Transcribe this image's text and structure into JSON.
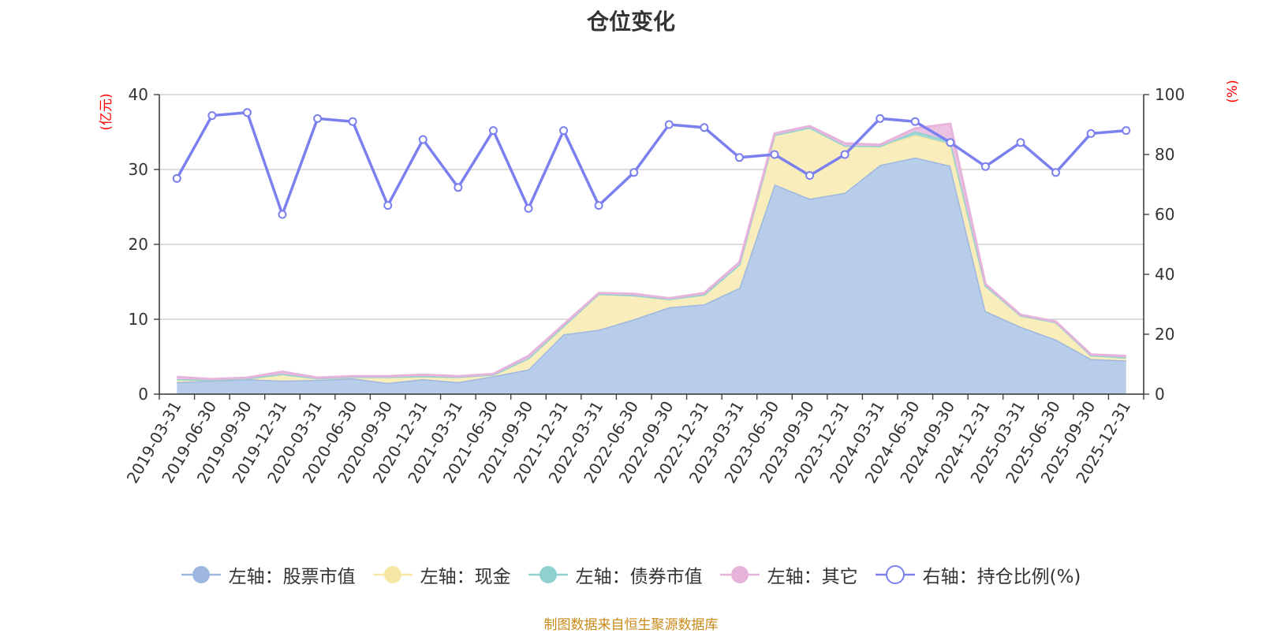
{
  "chart_data": {
    "type": "area",
    "title": "仓位变化",
    "left_axis_label": "(亿元)",
    "right_axis_label": "(%)",
    "left_ylim": [
      0,
      40
    ],
    "left_ticks": [
      "0",
      "10",
      "20",
      "30",
      "40"
    ],
    "right_ylim": [
      0,
      100
    ],
    "right_ticks": [
      "0",
      "20",
      "40",
      "60",
      "80",
      "100"
    ],
    "categories": [
      "2019-03-31",
      "2019-06-30",
      "2019-09-30",
      "2019-12-31",
      "2020-03-31",
      "2020-06-30",
      "2020-09-30",
      "2020-12-31",
      "2021-03-31",
      "2021-06-30",
      "2021-09-30",
      "2021-12-31",
      "2022-03-31",
      "2022-06-30",
      "2022-09-30",
      "2022-12-31",
      "2023-03-31",
      "2023-06-30",
      "2023-09-30",
      "2023-12-31",
      "2024-03-31",
      "2024-06-30",
      "2024-09-30",
      "2024-12-31",
      "2025-03-31",
      "2025-06-30",
      "2025-09-30",
      "2025-12-31"
    ],
    "series": [
      {
        "name": "左轴：股票市值",
        "axis": "left",
        "color": "#9db7e0",
        "fill": "#b8cdea",
        "values": [
          1.6,
          1.8,
          2.0,
          1.8,
          1.9,
          2.1,
          1.5,
          2.0,
          1.6,
          2.4,
          3.3,
          8.0,
          8.6,
          10.0,
          11.6,
          12.0,
          14.2,
          28.0,
          26.1,
          26.9,
          30.6,
          31.6,
          30.5,
          11.1,
          9.0,
          7.3,
          4.7,
          4.5
        ]
      },
      {
        "name": "左轴：现金",
        "axis": "left",
        "color": "#f6e7a6",
        "fill": "#f8edbb",
        "values": [
          0.4,
          0.1,
          0.1,
          0.9,
          0.2,
          0.2,
          0.8,
          0.4,
          0.7,
          0.2,
          1.5,
          1.1,
          4.8,
          3.2,
          1.1,
          1.3,
          3.1,
          6.6,
          9.5,
          6.3,
          2.5,
          3.0,
          2.9,
          3.4,
          1.5,
          2.3,
          0.5,
          0.4
        ]
      },
      {
        "name": "左轴：债券市值",
        "axis": "left",
        "color": "#8fd1d1",
        "fill": "#9fd7d7",
        "values": [
          0,
          0,
          0,
          0,
          0,
          0,
          0,
          0,
          0,
          0,
          0,
          0,
          0,
          0,
          0,
          0,
          0,
          0,
          0,
          0,
          0,
          0.5,
          0.4,
          0,
          0,
          0,
          0,
          0
        ]
      },
      {
        "name": "左轴：其它",
        "axis": "left",
        "color": "#e6b3da",
        "fill": "#ebc2e1",
        "values": [
          0.3,
          0.1,
          0.1,
          0.3,
          0.1,
          0.1,
          0.1,
          0.2,
          0.1,
          0.1,
          0.3,
          0.2,
          0.1,
          0.2,
          0.1,
          0.2,
          0.3,
          0.2,
          0.2,
          0.3,
          0.2,
          0.4,
          2.3,
          0.2,
          0.1,
          0.1,
          0.1,
          0.2
        ]
      },
      {
        "name": "右轴：持仓比例(%)",
        "axis": "right",
        "color": "#7b80ee",
        "values": [
          72,
          93,
          94,
          60,
          92,
          91,
          63,
          85,
          69,
          88,
          62,
          88,
          63,
          74,
          90,
          89,
          79,
          80,
          73,
          80,
          92,
          91,
          84,
          76,
          84,
          74,
          87,
          88
        ]
      }
    ]
  },
  "source_note": "制图数据来自恒生聚源数据库"
}
